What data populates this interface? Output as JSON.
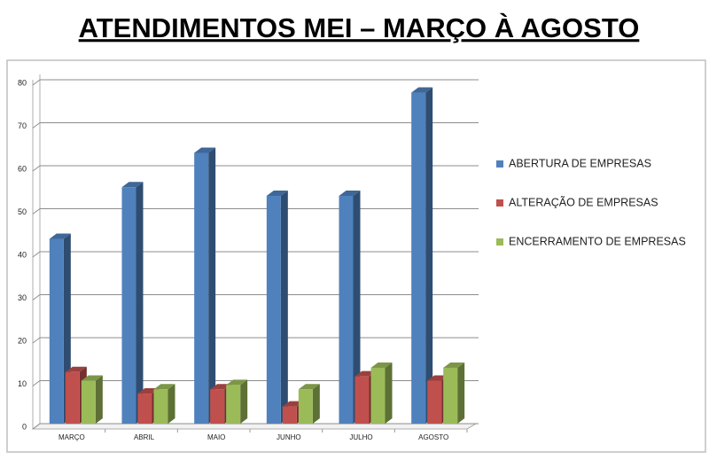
{
  "chart_data": {
    "type": "bar3d",
    "title": "ATENDIMENTOS MEI – MARÇO À AGOSTO",
    "categories": [
      "MARÇO",
      "ABRIL",
      "MAIO",
      "JUNHO",
      "JULHO",
      "AGOSTO"
    ],
    "series": [
      {
        "name": "ABERTURA DE EMPRESAS",
        "color": "#4f81bd",
        "values": [
          43,
          55,
          63,
          53,
          53,
          77
        ]
      },
      {
        "name": "ALTERAÇÃO DE EMPRESAS",
        "color": "#c0504d",
        "values": [
          12,
          7,
          8,
          4,
          11,
          10
        ]
      },
      {
        "name": "ENCERRAMENTO DE EMPRESAS",
        "color": "#9bbb59",
        "values": [
          10,
          8,
          9,
          8,
          13,
          13
        ]
      }
    ],
    "ylim": [
      0,
      80
    ],
    "yticks": [
      0,
      10,
      20,
      30,
      40,
      50,
      60,
      70,
      80
    ],
    "grid": true,
    "legend": "right"
  }
}
